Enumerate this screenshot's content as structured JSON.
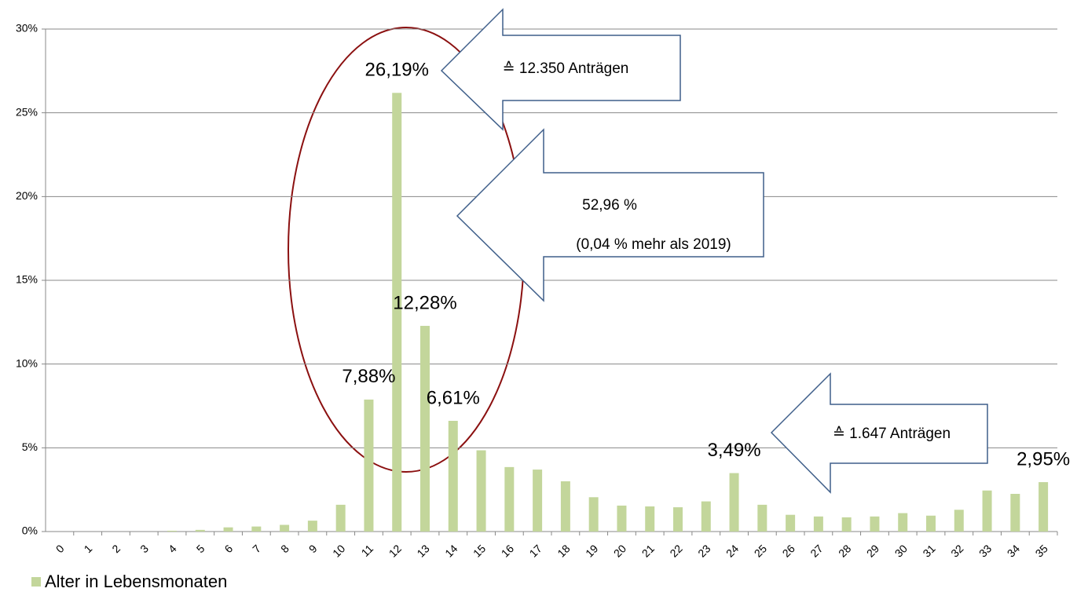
{
  "chart_data": {
    "type": "bar",
    "categories": [
      "0",
      "1",
      "2",
      "3",
      "4",
      "5",
      "6",
      "7",
      "8",
      "9",
      "10",
      "11",
      "12",
      "13",
      "14",
      "15",
      "16",
      "17",
      "18",
      "19",
      "20",
      "21",
      "22",
      "23",
      "24",
      "25",
      "26",
      "27",
      "28",
      "29",
      "30",
      "31",
      "32",
      "33",
      "34",
      "35"
    ],
    "series": [
      {
        "name": "Alter in Lebensmonaten",
        "color": "#c3d69b",
        "values": [
          0,
          0,
          0,
          0,
          0.05,
          0.1,
          0.25,
          0.3,
          0.4,
          0.65,
          1.6,
          7.88,
          26.19,
          12.28,
          6.61,
          4.85,
          3.85,
          3.7,
          3.0,
          2.05,
          1.55,
          1.5,
          1.45,
          1.8,
          3.49,
          1.6,
          1.0,
          0.9,
          0.85,
          0.9,
          1.1,
          0.95,
          1.3,
          2.45,
          2.25,
          2.95
        ],
        "value_labels": [
          null,
          null,
          null,
          null,
          null,
          null,
          null,
          null,
          null,
          null,
          null,
          "7,88%",
          "26,19%",
          "12,28%",
          "6,61%",
          null,
          null,
          null,
          null,
          null,
          null,
          null,
          null,
          null,
          "3,49%",
          null,
          null,
          null,
          null,
          null,
          null,
          null,
          null,
          null,
          null,
          "2,95%"
        ]
      }
    ],
    "ylim": [
      0,
      30
    ],
    "yticks": [
      {
        "value": 0,
        "label": "0%"
      },
      {
        "value": 5,
        "label": "5%"
      },
      {
        "value": 10,
        "label": "10%"
      },
      {
        "value": 15,
        "label": "15%"
      },
      {
        "value": 20,
        "label": "20%"
      },
      {
        "value": 25,
        "label": "25%"
      },
      {
        "value": 30,
        "label": "30%"
      }
    ],
    "grid": true,
    "legend": "bottom-left",
    "annotations": [
      "≙ 12.350 Anträgen",
      "52,96 %",
      "(0,04 % mehr als 2019)",
      "≙ 1.647 Anträgen"
    ]
  }
}
